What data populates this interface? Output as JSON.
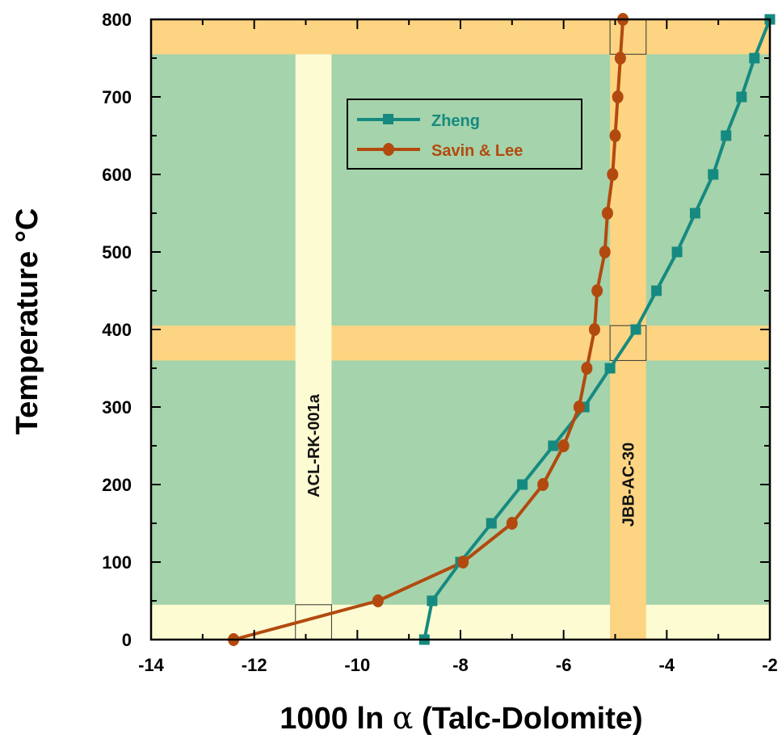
{
  "chart_data": {
    "type": "line",
    "xlabel_prefix": "1000 ln ",
    "xlabel_symbol": "α",
    "xlabel_suffix": " (Talc-Dolomite)",
    "ylabel": "Temperature °C",
    "xlim": [
      -14,
      -2
    ],
    "ylim": [
      0,
      800
    ],
    "xticks": [
      -14,
      -12,
      -10,
      -8,
      -6,
      -4,
      -2
    ],
    "yticks": [
      0,
      100,
      200,
      300,
      400,
      500,
      600,
      700,
      800
    ],
    "x_tick_labels": [
      "-14",
      "-12",
      "-10",
      "-8",
      "-6",
      "-4",
      "-2"
    ],
    "y_tick_labels": [
      "0",
      "100",
      "200",
      "300",
      "400",
      "500",
      "600",
      "700",
      "800"
    ],
    "grid": false,
    "legend_position": "upper-center",
    "series": [
      {
        "name": "Zheng",
        "color": "#168a80",
        "marker": "square",
        "x": [
          -8.7,
          -8.55,
          -8.0,
          -7.4,
          -6.8,
          -6.2,
          -5.6,
          -5.1,
          -4.6,
          -4.2,
          -3.8,
          -3.45,
          -3.1,
          -2.85,
          -2.55,
          -2.3,
          -2.0
        ],
        "y": [
          0,
          50,
          100,
          150,
          200,
          250,
          300,
          350,
          400,
          450,
          500,
          550,
          600,
          650,
          700,
          750,
          800
        ]
      },
      {
        "name": "Savin & Lee",
        "color": "#b24a0f",
        "marker": "circle",
        "x": [
          -12.4,
          -9.6,
          -7.95,
          -7.0,
          -6.4,
          -6.0,
          -5.7,
          -5.55,
          -5.4,
          -5.35,
          -5.2,
          -5.15,
          -5.05,
          -5.0,
          -4.95,
          -4.9,
          -4.85
        ],
        "y": [
          0,
          50,
          100,
          150,
          200,
          250,
          300,
          350,
          400,
          450,
          500,
          550,
          600,
          650,
          700,
          750,
          800
        ]
      }
    ],
    "bands": {
      "background_color": "#a5d3ab",
      "horizontal": [
        {
          "from": 0,
          "to": 45,
          "color": "#fdfbd2"
        },
        {
          "from": 360,
          "to": 405,
          "color": "#fdd482"
        },
        {
          "from": 755,
          "to": 800,
          "color": "#fdd482"
        }
      ],
      "vertical": [
        {
          "from": -11.2,
          "to": -10.5,
          "color": "#fdfbd2",
          "ylim": [
            0,
            755
          ],
          "label": "ACL-RK-001a",
          "label_y": 250
        },
        {
          "from": -5.1,
          "to": -4.4,
          "color": "#fdd482",
          "ylim": [
            0,
            800
          ],
          "label": "JBB-AC-30",
          "label_y": 200
        }
      ],
      "boxes": [
        {
          "x": [
            -11.2,
            -10.5
          ],
          "y": [
            0,
            45
          ]
        },
        {
          "x": [
            -5.1,
            -4.4
          ],
          "y": [
            360,
            405
          ]
        },
        {
          "x": [
            -5.1,
            -4.4
          ],
          "y": [
            755,
            800
          ]
        }
      ]
    }
  }
}
